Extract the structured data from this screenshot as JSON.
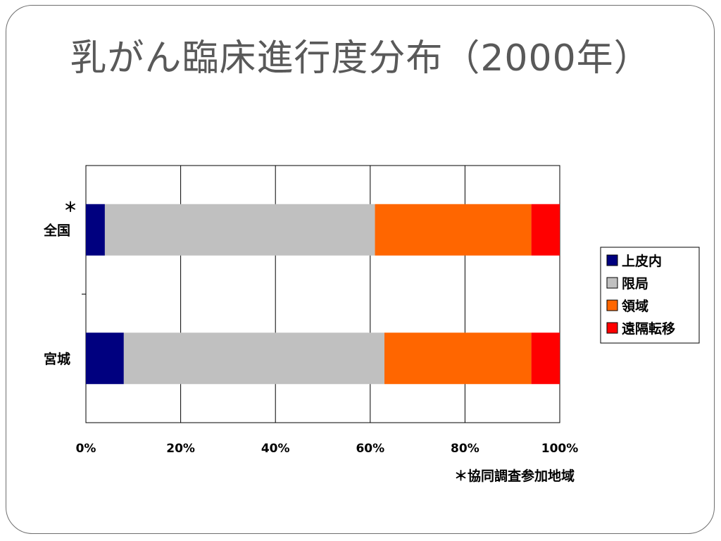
{
  "slide": {
    "title": "乳がん臨床進行度分布（2000年）"
  },
  "footnote": "＊協同調査参加地域",
  "colors": {
    "上皮内": "#00007f",
    "限局": "#c0c0c0",
    "領域": "#ff6600",
    "遠隔転移": "#ff0000"
  },
  "chart_data": {
    "type": "bar",
    "orientation": "horizontal",
    "stacked": true,
    "percent": true,
    "categories": [
      "全国",
      "宮城"
    ],
    "category_marks": [
      "＊",
      ""
    ],
    "series": [
      {
        "name": "上皮内",
        "values": [
          4,
          8
        ]
      },
      {
        "name": "限局",
        "values": [
          57,
          55
        ]
      },
      {
        "name": "領域",
        "values": [
          33,
          31
        ]
      },
      {
        "name": "遠隔転移",
        "values": [
          6,
          6
        ]
      }
    ],
    "xlim": [
      0,
      100
    ],
    "x_ticks": [
      "0%",
      "20%",
      "40%",
      "60%",
      "80%",
      "100%"
    ],
    "grid": true,
    "legend_position": "right"
  }
}
